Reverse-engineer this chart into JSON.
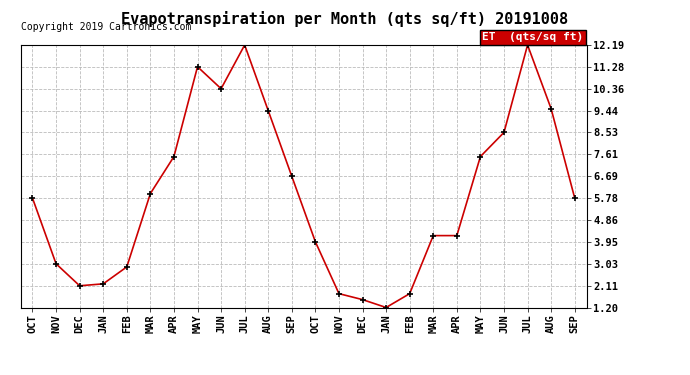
{
  "title": "Evapotranspiration per Month (qts sq/ft) 20191008",
  "copyright": "Copyright 2019 Cartronics.com",
  "legend_label": "ET  (qts/sq ft)",
  "x_labels": [
    "OCT",
    "NOV",
    "DEC",
    "JAN",
    "FEB",
    "MAR",
    "APR",
    "MAY",
    "JUN",
    "JUL",
    "AUG",
    "SEP",
    "OCT",
    "NOV",
    "DEC",
    "JAN",
    "FEB",
    "MAR",
    "APR",
    "MAY",
    "JUN",
    "JUL",
    "AUG",
    "SEP"
  ],
  "y_values": [
    5.78,
    3.03,
    2.11,
    2.19,
    2.9,
    5.97,
    7.52,
    11.28,
    10.36,
    12.19,
    9.44,
    6.69,
    3.95,
    1.78,
    1.53,
    1.2,
    1.78,
    4.21,
    4.21,
    7.52,
    8.53,
    12.19,
    9.52,
    5.78
  ],
  "y_ticks": [
    1.2,
    2.11,
    3.03,
    3.95,
    4.86,
    5.78,
    6.69,
    7.61,
    8.53,
    9.44,
    10.36,
    11.28,
    12.19
  ],
  "line_color": "#cc0000",
  "marker_color": "#000000",
  "background_color": "#ffffff",
  "grid_color": "#bbbbbb",
  "legend_bg": "#cc0000",
  "legend_text_color": "#ffffff",
  "title_fontsize": 11,
  "copyright_fontsize": 7,
  "tick_fontsize": 7.5,
  "legend_fontsize": 8,
  "ylim": [
    1.2,
    12.19
  ]
}
